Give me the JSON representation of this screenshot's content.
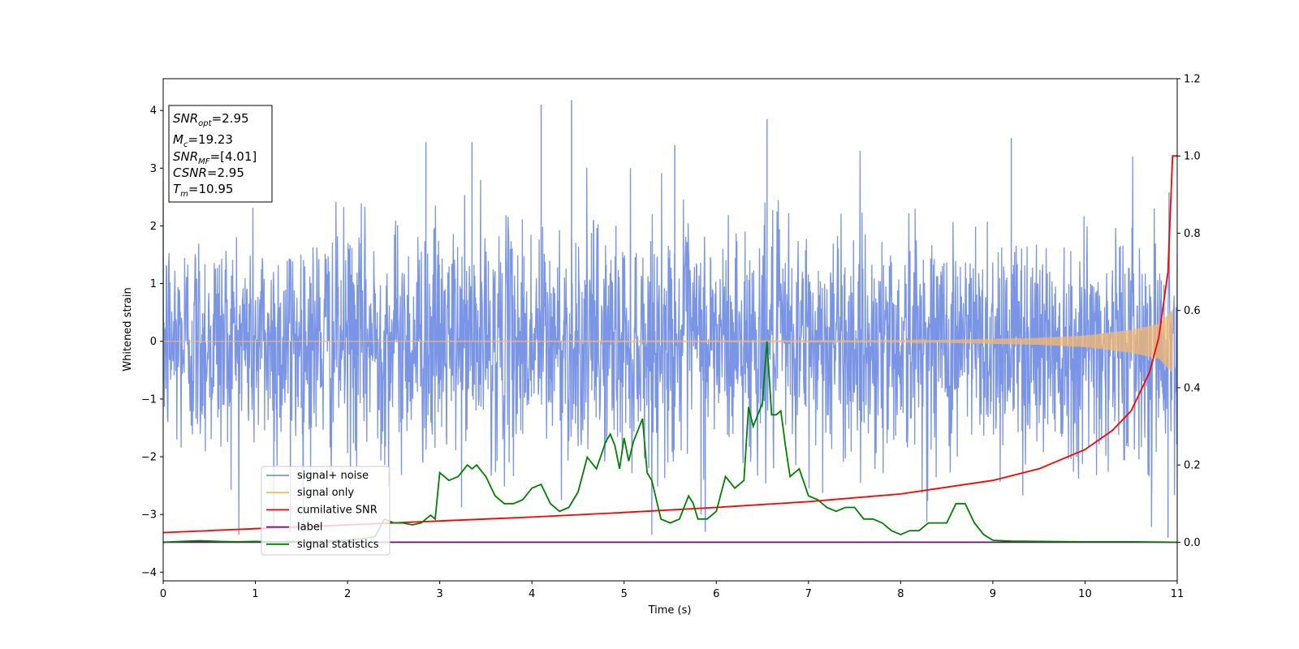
{
  "chart_data": {
    "type": "line",
    "xlabel": "Time (s)",
    "ylabel_left": "Whitened strain",
    "ylabel_right": "",
    "xlim": [
      0,
      11
    ],
    "ylim_left": [
      -4.15,
      4.55
    ],
    "ylim_right": [
      -0.1,
      1.2
    ],
    "x_ticks": [
      "0",
      "1",
      "2",
      "3",
      "4",
      "5",
      "6",
      "7",
      "8",
      "9",
      "10",
      "11"
    ],
    "y_ticks_left": [
      "−4",
      "−3",
      "−2",
      "−1",
      "0",
      "1",
      "2",
      "3",
      "4"
    ],
    "y_ticks_right": [
      "0.0",
      "0.2",
      "0.4",
      "0.6",
      "0.8",
      "1.0",
      "1.2"
    ],
    "grid": false,
    "legend_placement": "lower-left",
    "legend": [
      "signal+ noise",
      "signal only",
      "cumilative SNR",
      "label",
      "signal statistics"
    ],
    "annotation": {
      "lines": [
        {
          "main": "SNR",
          "sub": "opt",
          "rest": "=2.95"
        },
        {
          "main": "M",
          "sub": "c",
          "rest": "=19.23"
        },
        {
          "main": "SNR",
          "sub": "MF",
          "rest": "=[4.01]"
        },
        {
          "main": "CSNR",
          "sub": "",
          "rest": "=2.95"
        },
        {
          "main": "T",
          "sub": "m",
          "rest": "=10.95"
        }
      ]
    },
    "series": [
      {
        "name": "signal+ noise",
        "axis": "left",
        "color": "#7a94e6",
        "description_values": {
          "mean": 0.0,
          "std": 1.0,
          "min": -3.5,
          "max": 4.2
        },
        "peaks": [
          [
            4.1,
            4.1
          ],
          [
            4.43,
            4.18
          ],
          [
            6.55,
            3.85
          ],
          [
            9.2,
            3.52
          ],
          [
            2.85,
            3.45
          ],
          [
            3.35,
            3.45
          ],
          [
            5.55,
            3.4
          ],
          [
            1.2,
            -3.2
          ],
          [
            1.38,
            -3.3
          ],
          [
            5.88,
            -3.3
          ],
          [
            10.9,
            -3.4
          ]
        ]
      },
      {
        "name": "signal only",
        "axis": "left",
        "color": "#f5b96e",
        "envelope": [
          [
            0,
            0.0
          ],
          [
            8,
            0.01
          ],
          [
            9.5,
            0.06
          ],
          [
            10,
            0.1
          ],
          [
            10.5,
            0.2
          ],
          [
            10.8,
            0.3
          ],
          [
            10.95,
            0.55
          ]
        ]
      },
      {
        "name": "cumilative SNR",
        "axis": "right",
        "color": "#ff0000",
        "x": [
          0,
          1,
          2,
          3,
          4,
          5,
          6,
          7,
          8,
          9,
          9.5,
          10,
          10.3,
          10.5,
          10.7,
          10.8,
          10.9,
          10.95,
          11.0
        ],
        "y": [
          0.025,
          0.035,
          0.045,
          0.055,
          0.065,
          0.077,
          0.09,
          0.105,
          0.125,
          0.16,
          0.19,
          0.24,
          0.29,
          0.34,
          0.44,
          0.53,
          0.7,
          1.0,
          1.0
        ]
      },
      {
        "name": "label",
        "axis": "right",
        "color": "#800080",
        "x": [
          0,
          11
        ],
        "y": [
          0.0,
          0.0
        ]
      },
      {
        "name": "signal statistics",
        "axis": "right",
        "color": "#008000",
        "x": [
          0,
          0.2,
          0.4,
          0.6,
          0.8,
          1.0,
          1.2,
          1.4,
          1.6,
          1.8,
          2.0,
          2.2,
          2.3,
          2.4,
          2.5,
          2.6,
          2.7,
          2.8,
          2.9,
          2.95,
          3.0,
          3.1,
          3.2,
          3.3,
          3.35,
          3.4,
          3.5,
          3.6,
          3.7,
          3.8,
          3.9,
          4.0,
          4.1,
          4.2,
          4.3,
          4.4,
          4.5,
          4.6,
          4.7,
          4.8,
          4.85,
          4.9,
          4.95,
          5.0,
          5.05,
          5.1,
          5.15,
          5.2,
          5.25,
          5.3,
          5.4,
          5.5,
          5.6,
          5.7,
          5.75,
          5.8,
          5.9,
          6.0,
          6.1,
          6.2,
          6.25,
          6.3,
          6.35,
          6.4,
          6.45,
          6.5,
          6.55,
          6.6,
          6.65,
          6.7,
          6.75,
          6.8,
          6.9,
          7.0,
          7.1,
          7.2,
          7.3,
          7.4,
          7.5,
          7.6,
          7.7,
          7.8,
          7.9,
          8.0,
          8.1,
          8.2,
          8.3,
          8.4,
          8.5,
          8.6,
          8.7,
          8.8,
          8.9,
          9.0,
          9.2,
          9.5,
          10.0,
          10.5,
          11.0
        ],
        "y": [
          0.0,
          0.002,
          0.004,
          0.002,
          0.001,
          0.002,
          0.001,
          0.002,
          0.002,
          0.003,
          0.005,
          0.01,
          0.015,
          0.06,
          0.05,
          0.05,
          0.045,
          0.05,
          0.07,
          0.06,
          0.18,
          0.16,
          0.17,
          0.2,
          0.19,
          0.2,
          0.17,
          0.12,
          0.1,
          0.1,
          0.11,
          0.14,
          0.15,
          0.1,
          0.08,
          0.09,
          0.13,
          0.22,
          0.19,
          0.26,
          0.28,
          0.25,
          0.19,
          0.27,
          0.21,
          0.26,
          0.29,
          0.32,
          0.18,
          0.16,
          0.06,
          0.05,
          0.06,
          0.12,
          0.1,
          0.06,
          0.06,
          0.08,
          0.17,
          0.14,
          0.15,
          0.16,
          0.35,
          0.3,
          0.33,
          0.36,
          0.52,
          0.33,
          0.33,
          0.34,
          0.25,
          0.17,
          0.19,
          0.12,
          0.11,
          0.09,
          0.08,
          0.09,
          0.09,
          0.06,
          0.06,
          0.05,
          0.03,
          0.02,
          0.03,
          0.03,
          0.05,
          0.05,
          0.05,
          0.1,
          0.1,
          0.05,
          0.02,
          0.005,
          0.003,
          0.002,
          0.001,
          0.001,
          0.0
        ]
      }
    ]
  }
}
